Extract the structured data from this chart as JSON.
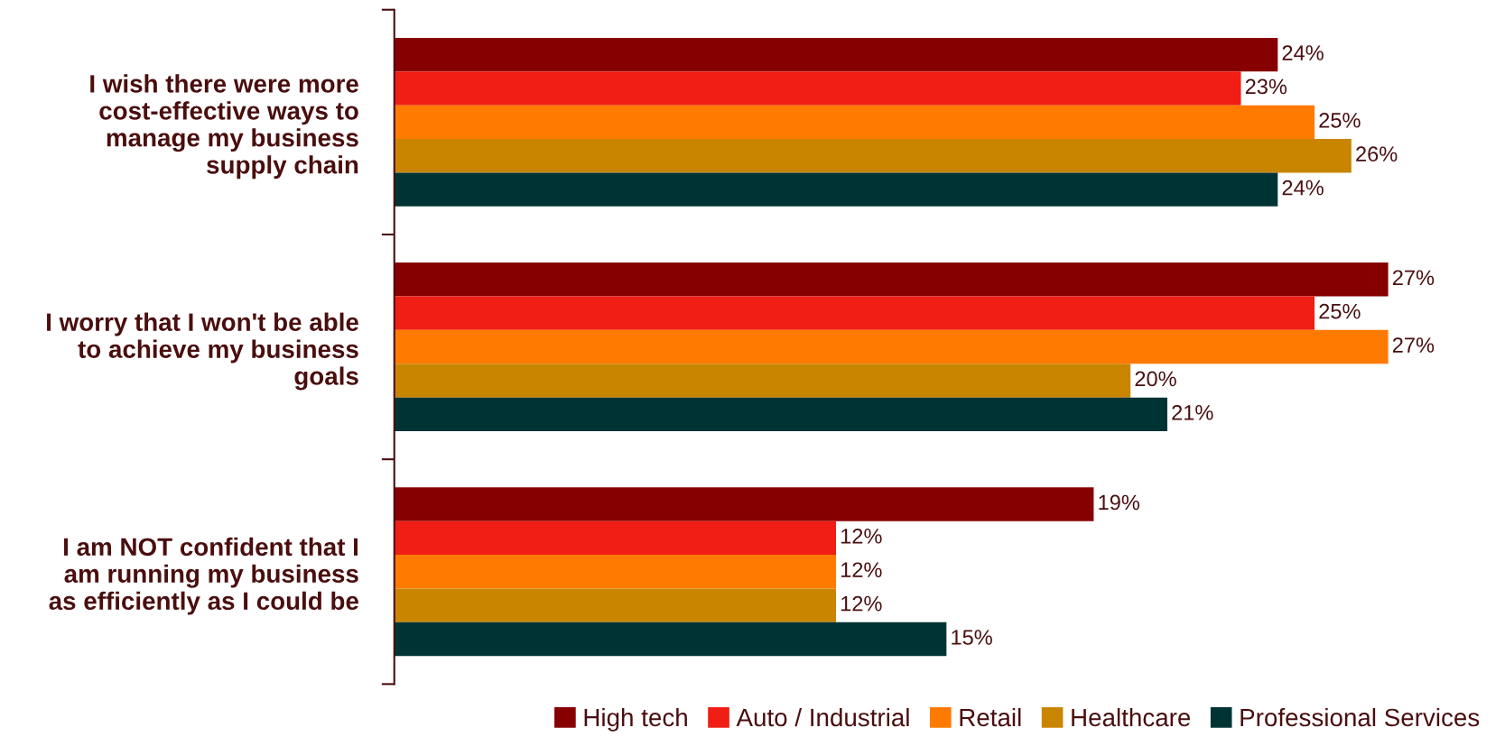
{
  "chart_data": {
    "type": "bar",
    "orientation": "horizontal",
    "categories": [
      "I wish there were more\ncost-effective ways to\nmanage my business\nsupply chain",
      "I worry that I won't be able\nto achieve my business\ngoals",
      "I am NOT confident that I\nam running my business\nas efficiently as I could be"
    ],
    "series": [
      {
        "name": "High tech",
        "color": "#870000",
        "values": [
          24,
          27,
          19
        ],
        "value_labels": [
          "24%",
          "27%",
          "19%"
        ]
      },
      {
        "name": "Auto / Industrial",
        "color": "#f01e14",
        "values": [
          23,
          25,
          12
        ],
        "value_labels": [
          "23%",
          "25%",
          "12%"
        ]
      },
      {
        "name": "Retail",
        "color": "#ff7a00",
        "values": [
          25,
          27,
          12
        ],
        "value_labels": [
          "25%",
          "27%",
          "12%"
        ]
      },
      {
        "name": "Healthcare",
        "color": "#c98500",
        "values": [
          26,
          20,
          12
        ],
        "value_labels": [
          "26%",
          "20%",
          "12%"
        ]
      },
      {
        "name": "Professional Services",
        "color": "#003434",
        "values": [
          24,
          21,
          15
        ],
        "value_labels": [
          "24%",
          "21%",
          "15%"
        ]
      }
    ],
    "tick_labels": "y",
    "legend": "bottom right",
    "grid": false
  }
}
